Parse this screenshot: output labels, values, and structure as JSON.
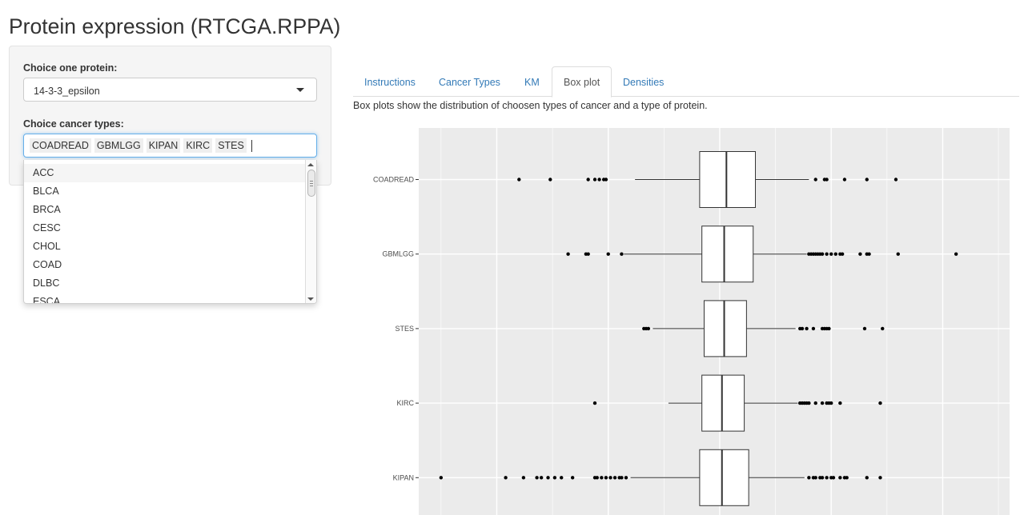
{
  "page_title": "Protein expression (RTCGA.RPPA)",
  "sidebar": {
    "protein_label": "Choice one protein:",
    "protein_selected": "14-3-3_epsilon",
    "cancer_label": "Choice cancer types:",
    "cancer_selected": [
      "COADREAD",
      "GBMLGG",
      "KIPAN",
      "KIRC",
      "STES"
    ],
    "dropdown_options": [
      "ACC",
      "BLCA",
      "BRCA",
      "CESC",
      "CHOL",
      "COAD",
      "DLBC",
      "ESCA"
    ]
  },
  "tabs": [
    {
      "label": "Instructions",
      "active": false
    },
    {
      "label": "Cancer Types",
      "active": false
    },
    {
      "label": "KM",
      "active": false
    },
    {
      "label": "Box plot",
      "active": true
    },
    {
      "label": "Densities",
      "active": false
    }
  ],
  "box_plot_description": "Box plots show the distribution of choosen types of cancer and a type of protein.",
  "chart_data": {
    "type": "boxplot",
    "orientation": "horizontal",
    "categories": [
      "COADREAD",
      "GBMLGG",
      "STES",
      "KIRC",
      "KIPAN"
    ],
    "boxes": [
      {
        "name": "COADREAD",
        "lower_whisker": -0.38,
        "q1": -0.09,
        "median": 0.03,
        "q3": 0.16,
        "upper_whisker": 0.4,
        "outliers": [
          -0.9,
          -0.76,
          -0.59,
          -0.56,
          -0.54,
          -0.52,
          -0.51,
          0.43,
          0.47,
          0.48,
          0.56,
          0.66,
          0.79
        ]
      },
      {
        "name": "GBMLGG",
        "lower_whisker": -0.43,
        "q1": -0.08,
        "median": 0.02,
        "q3": 0.15,
        "upper_whisker": 0.39,
        "outliers": [
          -0.68,
          -0.6,
          -0.59,
          -0.5,
          -0.44,
          0.4,
          0.41,
          0.42,
          0.43,
          0.44,
          0.45,
          0.46,
          0.48,
          0.5,
          0.52,
          0.54,
          0.55,
          0.63,
          0.66,
          0.67,
          0.8,
          1.06
        ]
      },
      {
        "name": "STES",
        "lower_whisker": -0.3,
        "q1": -0.07,
        "median": 0.02,
        "q3": 0.12,
        "upper_whisker": 0.34,
        "outliers": [
          -0.34,
          -0.33,
          -0.32,
          0.36,
          0.37,
          0.39,
          0.42,
          0.46,
          0.47,
          0.48,
          0.49,
          0.65,
          0.73
        ]
      },
      {
        "name": "KIRC",
        "lower_whisker": -0.23,
        "q1": -0.08,
        "median": 0.01,
        "q3": 0.11,
        "upper_whisker": 0.35,
        "outliers": [
          -0.56,
          0.36,
          0.37,
          0.38,
          0.39,
          0.4,
          0.43,
          0.46,
          0.48,
          0.49,
          0.5,
          0.54,
          0.72
        ]
      },
      {
        "name": "KIPAN",
        "lower_whisker": -0.4,
        "q1": -0.09,
        "median": 0.01,
        "q3": 0.13,
        "upper_whisker": 0.38,
        "outliers": [
          -1.25,
          -0.96,
          -0.88,
          -0.82,
          -0.8,
          -0.77,
          -0.74,
          -0.71,
          -0.66,
          -0.56,
          -0.55,
          -0.53,
          -0.51,
          -0.49,
          -0.47,
          -0.45,
          -0.44,
          -0.42,
          0.4,
          0.42,
          0.43,
          0.45,
          0.46,
          0.48,
          0.5,
          0.51,
          0.54,
          0.56,
          0.57,
          0.66,
          0.72
        ]
      }
    ],
    "xlim": [
      -1.35,
      1.3
    ],
    "grid": true,
    "background": "#ebebeb"
  }
}
